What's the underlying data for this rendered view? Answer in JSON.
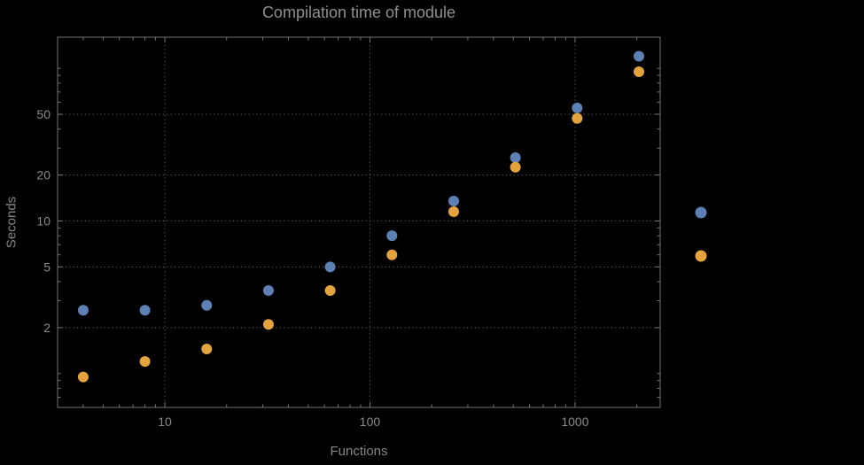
{
  "chart_data": {
    "type": "scatter",
    "title": "Compilation time of module",
    "xlabel": "Functions",
    "ylabel": "Seconds",
    "x_scale": "log",
    "y_scale": "log",
    "grid": "dotted",
    "xlim": [
      3,
      2600
    ],
    "ylim": [
      0.6,
      160
    ],
    "x_ticks": [
      10,
      100,
      1000
    ],
    "y_ticks": [
      2,
      5,
      10,
      20,
      50
    ],
    "x": [
      4,
      8,
      16,
      32,
      64,
      128,
      256,
      512,
      1024,
      2048
    ],
    "series": [
      {
        "label": "",
        "color": "#5E81B5",
        "values": [
          2.6,
          2.6,
          2.8,
          3.5,
          5.0,
          8.0,
          13.5,
          26,
          55,
          120
        ]
      },
      {
        "label": "",
        "color": "#E5A33E",
        "values": [
          0.95,
          1.2,
          1.45,
          2.1,
          3.5,
          6.0,
          11.5,
          22.5,
          47,
          95
        ]
      }
    ],
    "legend_position": "right",
    "legend": {
      "entries": [
        {
          "label": "",
          "color": "#5E81B5"
        },
        {
          "label": "",
          "color": "#E5A33E"
        }
      ]
    }
  },
  "style": {
    "background": "#000000",
    "text_color": "#8a8a8a",
    "grid_color": "#5a5a5a",
    "frame_color": "#757575"
  }
}
